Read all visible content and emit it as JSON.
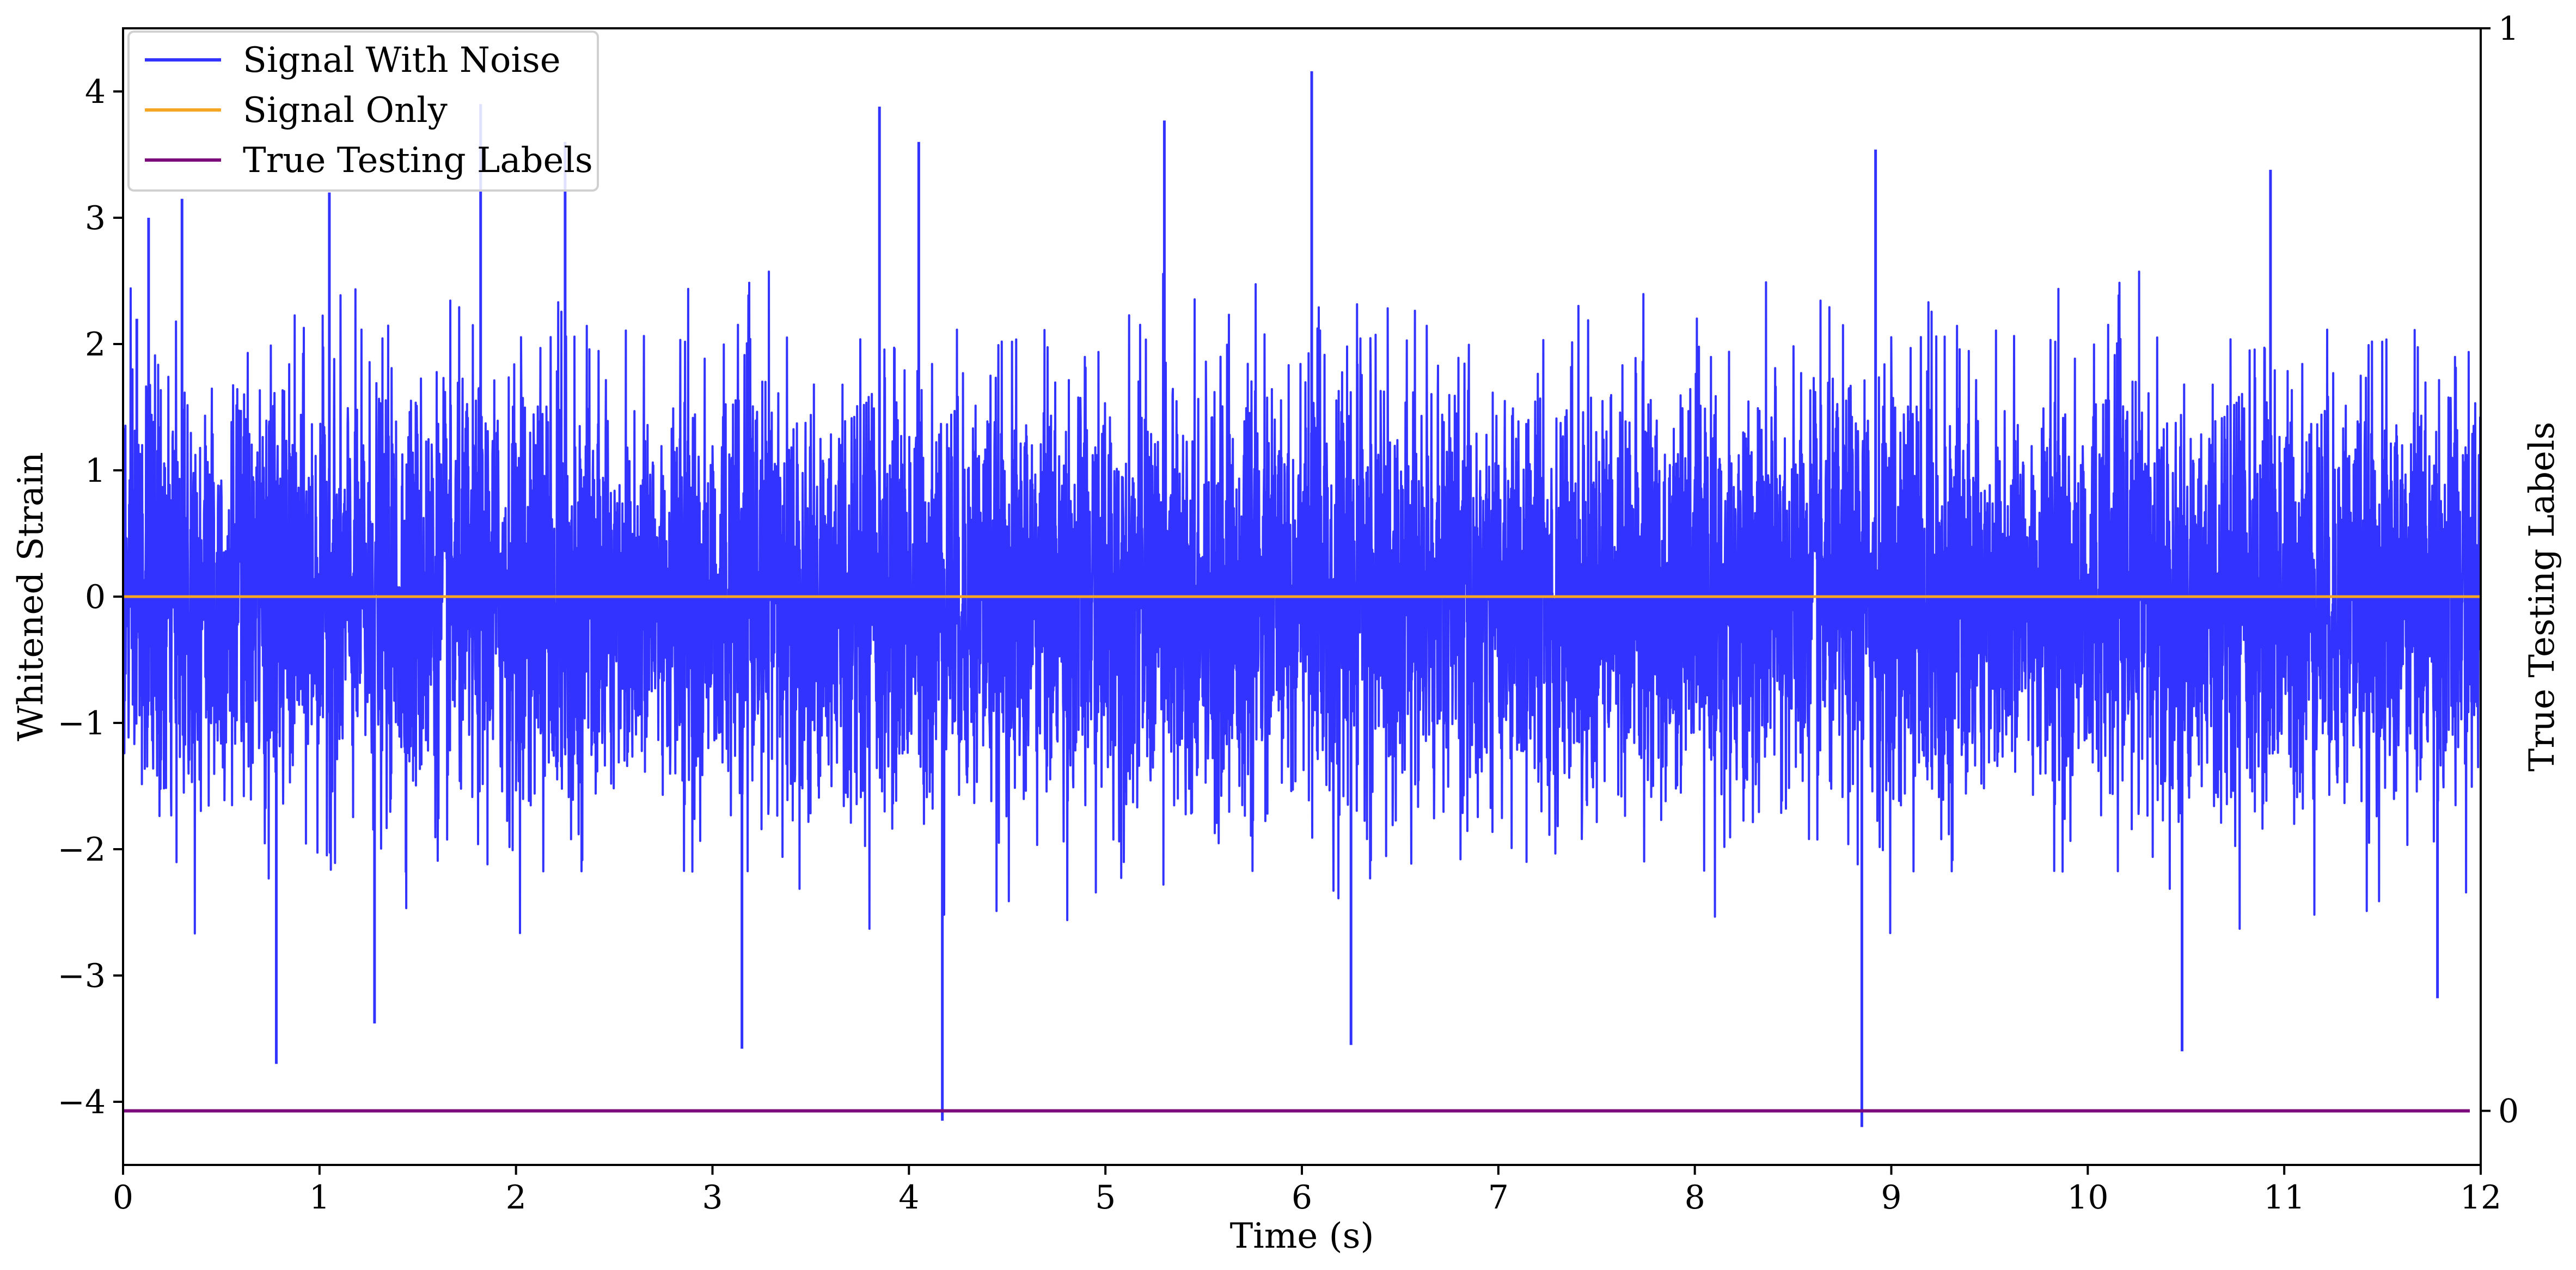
{
  "chart_data": {
    "type": "line",
    "xlabel": "Time (s)",
    "ylabel": "Whitened Strain",
    "y2label": "True Testing Labels",
    "xlim": [
      0,
      12
    ],
    "ylim": [
      -4.5,
      4.5
    ],
    "y2lim": [
      -0.05,
      1.0
    ],
    "x_ticks": [
      0,
      1,
      2,
      3,
      4,
      5,
      6,
      7,
      8,
      9,
      10,
      11,
      12
    ],
    "x_tick_labels": [
      "0",
      "1",
      "2",
      "3",
      "4",
      "5",
      "6",
      "7",
      "8",
      "9",
      "10",
      "11",
      "12"
    ],
    "y_ticks": [
      -4,
      -3,
      -2,
      -1,
      0,
      1,
      2,
      3,
      4
    ],
    "y_tick_labels": [
      "−4",
      "−3",
      "−2",
      "−1",
      "0",
      "1",
      "2",
      "3",
      "4"
    ],
    "y2_ticks": [
      0,
      1
    ],
    "y2_tick_labels": [
      "0",
      "1"
    ],
    "grid": false,
    "legend_position": "top-left",
    "series": [
      {
        "name": "Signal With Noise",
        "color": "#3333ff",
        "axis": "left",
        "description_values": {
          "x_range": [
            0,
            12
          ],
          "spikes": [
            {
              "x": 0.07,
              "y": 2.2
            },
            {
              "x": 0.13,
              "y": 3.0
            },
            {
              "x": 0.3,
              "y": 3.15
            },
            {
              "x": 0.78,
              "y": -3.7
            },
            {
              "x": 1.05,
              "y": 3.2
            },
            {
              "x": 1.28,
              "y": -3.38
            },
            {
              "x": 1.82,
              "y": 3.9
            },
            {
              "x": 2.25,
              "y": 3.6
            },
            {
              "x": 3.15,
              "y": -3.58
            },
            {
              "x": 3.85,
              "y": 3.88
            },
            {
              "x": 4.05,
              "y": 3.6
            },
            {
              "x": 4.17,
              "y": -4.15
            },
            {
              "x": 5.3,
              "y": 3.77
            },
            {
              "x": 6.05,
              "y": 4.16
            },
            {
              "x": 6.25,
              "y": -3.55
            },
            {
              "x": 8.85,
              "y": -4.2
            },
            {
              "x": 8.92,
              "y": 3.54
            },
            {
              "x": 10.48,
              "y": -3.6
            },
            {
              "x": 10.93,
              "y": 3.38
            },
            {
              "x": 11.78,
              "y": -3.18
            }
          ],
          "typical_envelope": [
            -2.3,
            2.3
          ]
        }
      },
      {
        "name": "Signal Only",
        "color": "#f5a623",
        "axis": "left",
        "x": [
          0,
          12
        ],
        "y": [
          0,
          0
        ]
      },
      {
        "name": "True Testing Labels",
        "color": "#7b0a7b",
        "axis": "right",
        "x": [
          0,
          12
        ],
        "y": [
          0,
          0
        ]
      }
    ]
  }
}
